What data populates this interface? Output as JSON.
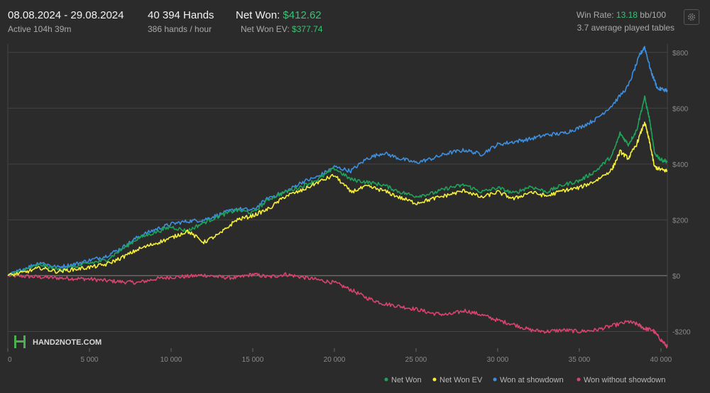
{
  "header": {
    "date_range": "08.08.2024 - 29.08.2024",
    "active_time": "Active 104h 39m",
    "hands": "40 394 Hands",
    "hands_per_hour": "386 hands / hour",
    "net_won_label": "Net Won:",
    "net_won_value": "$412.62",
    "net_won_ev_label": "Net Won  EV:",
    "net_won_ev_value": "$377.74",
    "win_rate_label": "Win Rate:",
    "win_rate_value": "13.18",
    "win_rate_unit": "bb/100",
    "tables_text": "3.7 average played tables"
  },
  "logo": {
    "text": "HAND2NOTE.COM"
  },
  "icons": {
    "settings": "gear-icon"
  },
  "colors": {
    "background": "#2b2b2b",
    "net_won": "#1fa35b",
    "net_won_ev": "#f5ef3a",
    "showdown": "#3d8fe0",
    "non_showdown": "#d9436f",
    "accent": "#3cc177"
  },
  "chart_data": {
    "type": "line",
    "xlabel": "",
    "ylabel": "",
    "xlim": [
      0,
      40394
    ],
    "ylim": [
      -260,
      830
    ],
    "x_ticks": [
      0,
      5000,
      10000,
      15000,
      20000,
      25000,
      30000,
      35000,
      40000
    ],
    "x_tick_labels": [
      "0",
      "5 000",
      "10 000",
      "15 000",
      "20 000",
      "25 000",
      "30 000",
      "35 000",
      "40 000"
    ],
    "y_ticks": [
      -200,
      0,
      200,
      400,
      600,
      800
    ],
    "y_tick_labels": [
      "-$200",
      "$0",
      "$200",
      "$400",
      "$600",
      "$800"
    ],
    "grid": true,
    "legend_position": "bottom-right",
    "series": [
      {
        "name": "Net Won",
        "color": "#1fa35b",
        "points": [
          [
            0,
            0
          ],
          [
            1000,
            20
          ],
          [
            2000,
            40
          ],
          [
            3000,
            22
          ],
          [
            4000,
            30
          ],
          [
            5000,
            45
          ],
          [
            6000,
            55
          ],
          [
            7000,
            95
          ],
          [
            8000,
            135
          ],
          [
            9000,
            155
          ],
          [
            10000,
            175
          ],
          [
            11000,
            160
          ],
          [
            12000,
            190
          ],
          [
            13000,
            215
          ],
          [
            14000,
            235
          ],
          [
            15000,
            225
          ],
          [
            16000,
            275
          ],
          [
            17000,
            300
          ],
          [
            18000,
            320
          ],
          [
            19000,
            345
          ],
          [
            20000,
            385
          ],
          [
            21000,
            345
          ],
          [
            22000,
            335
          ],
          [
            23000,
            325
          ],
          [
            24000,
            300
          ],
          [
            25000,
            285
          ],
          [
            26000,
            295
          ],
          [
            27000,
            315
          ],
          [
            28000,
            325
          ],
          [
            29000,
            300
          ],
          [
            30000,
            315
          ],
          [
            31000,
            295
          ],
          [
            32000,
            320
          ],
          [
            33000,
            300
          ],
          [
            34000,
            325
          ],
          [
            35000,
            340
          ],
          [
            36000,
            375
          ],
          [
            37000,
            430
          ],
          [
            37500,
            510
          ],
          [
            38000,
            470
          ],
          [
            38500,
            520
          ],
          [
            39000,
            640
          ],
          [
            39300,
            560
          ],
          [
            39600,
            440
          ],
          [
            40000,
            415
          ],
          [
            40394,
            410
          ]
        ]
      },
      {
        "name": "Net Won  EV",
        "color": "#f5ef3a",
        "points": [
          [
            0,
            0
          ],
          [
            1000,
            12
          ],
          [
            2000,
            28
          ],
          [
            3000,
            15
          ],
          [
            4000,
            22
          ],
          [
            5000,
            30
          ],
          [
            6000,
            40
          ],
          [
            7000,
            65
          ],
          [
            8000,
            95
          ],
          [
            9000,
            115
          ],
          [
            10000,
            135
          ],
          [
            11000,
            160
          ],
          [
            12000,
            120
          ],
          [
            13000,
            150
          ],
          [
            14000,
            200
          ],
          [
            15000,
            215
          ],
          [
            16000,
            240
          ],
          [
            17000,
            285
          ],
          [
            18000,
            305
          ],
          [
            19000,
            335
          ],
          [
            20000,
            360
          ],
          [
            21000,
            300
          ],
          [
            22000,
            320
          ],
          [
            23000,
            305
          ],
          [
            24000,
            280
          ],
          [
            25000,
            260
          ],
          [
            26000,
            275
          ],
          [
            27000,
            290
          ],
          [
            28000,
            305
          ],
          [
            29000,
            280
          ],
          [
            30000,
            300
          ],
          [
            31000,
            275
          ],
          [
            32000,
            300
          ],
          [
            33000,
            285
          ],
          [
            34000,
            305
          ],
          [
            35000,
            315
          ],
          [
            36000,
            340
          ],
          [
            37000,
            380
          ],
          [
            37500,
            445
          ],
          [
            38000,
            420
          ],
          [
            38500,
            470
          ],
          [
            39000,
            550
          ],
          [
            39300,
            480
          ],
          [
            39600,
            390
          ],
          [
            40000,
            380
          ],
          [
            40394,
            375
          ]
        ]
      },
      {
        "name": "Won at showdown",
        "color": "#3d8fe0",
        "points": [
          [
            0,
            0
          ],
          [
            1000,
            25
          ],
          [
            2000,
            48
          ],
          [
            3000,
            30
          ],
          [
            4000,
            40
          ],
          [
            5000,
            55
          ],
          [
            6000,
            70
          ],
          [
            7000,
            100
          ],
          [
            8000,
            140
          ],
          [
            9000,
            165
          ],
          [
            10000,
            185
          ],
          [
            11000,
            195
          ],
          [
            12000,
            200
          ],
          [
            13000,
            220
          ],
          [
            14000,
            240
          ],
          [
            15000,
            235
          ],
          [
            16000,
            280
          ],
          [
            17000,
            300
          ],
          [
            18000,
            335
          ],
          [
            19000,
            355
          ],
          [
            20000,
            390
          ],
          [
            21000,
            375
          ],
          [
            22000,
            420
          ],
          [
            23000,
            440
          ],
          [
            24000,
            420
          ],
          [
            25000,
            405
          ],
          [
            26000,
            420
          ],
          [
            27000,
            440
          ],
          [
            28000,
            450
          ],
          [
            29000,
            435
          ],
          [
            30000,
            470
          ],
          [
            31000,
            480
          ],
          [
            32000,
            490
          ],
          [
            33000,
            505
          ],
          [
            34000,
            510
          ],
          [
            35000,
            530
          ],
          [
            36000,
            560
          ],
          [
            37000,
            610
          ],
          [
            38000,
            680
          ],
          [
            38700,
            790
          ],
          [
            39000,
            820
          ],
          [
            39400,
            730
          ],
          [
            39800,
            670
          ],
          [
            40394,
            665
          ]
        ]
      },
      {
        "name": "Won without showdown",
        "color": "#d9436f",
        "points": [
          [
            0,
            0
          ],
          [
            1000,
            -2
          ],
          [
            2000,
            -5
          ],
          [
            3000,
            -8
          ],
          [
            4000,
            -10
          ],
          [
            5000,
            -12
          ],
          [
            6000,
            -18
          ],
          [
            7000,
            -22
          ],
          [
            8000,
            -25
          ],
          [
            9000,
            -12
          ],
          [
            10000,
            -5
          ],
          [
            11000,
            -3
          ],
          [
            12000,
            2
          ],
          [
            13000,
            -5
          ],
          [
            14000,
            -8
          ],
          [
            15000,
            5
          ],
          [
            16000,
            -5
          ],
          [
            17000,
            5
          ],
          [
            18000,
            -5
          ],
          [
            19000,
            -15
          ],
          [
            20000,
            -25
          ],
          [
            21000,
            -50
          ],
          [
            22000,
            -80
          ],
          [
            23000,
            -100
          ],
          [
            24000,
            -110
          ],
          [
            25000,
            -120
          ],
          [
            26000,
            -135
          ],
          [
            27000,
            -140
          ],
          [
            28000,
            -125
          ],
          [
            29000,
            -140
          ],
          [
            30000,
            -160
          ],
          [
            31000,
            -175
          ],
          [
            32000,
            -195
          ],
          [
            33000,
            -200
          ],
          [
            34000,
            -195
          ],
          [
            35000,
            -200
          ],
          [
            36000,
            -195
          ],
          [
            37000,
            -180
          ],
          [
            38000,
            -165
          ],
          [
            38600,
            -175
          ],
          [
            39000,
            -190
          ],
          [
            39500,
            -195
          ],
          [
            40000,
            -230
          ],
          [
            40394,
            -255
          ]
        ]
      }
    ]
  }
}
